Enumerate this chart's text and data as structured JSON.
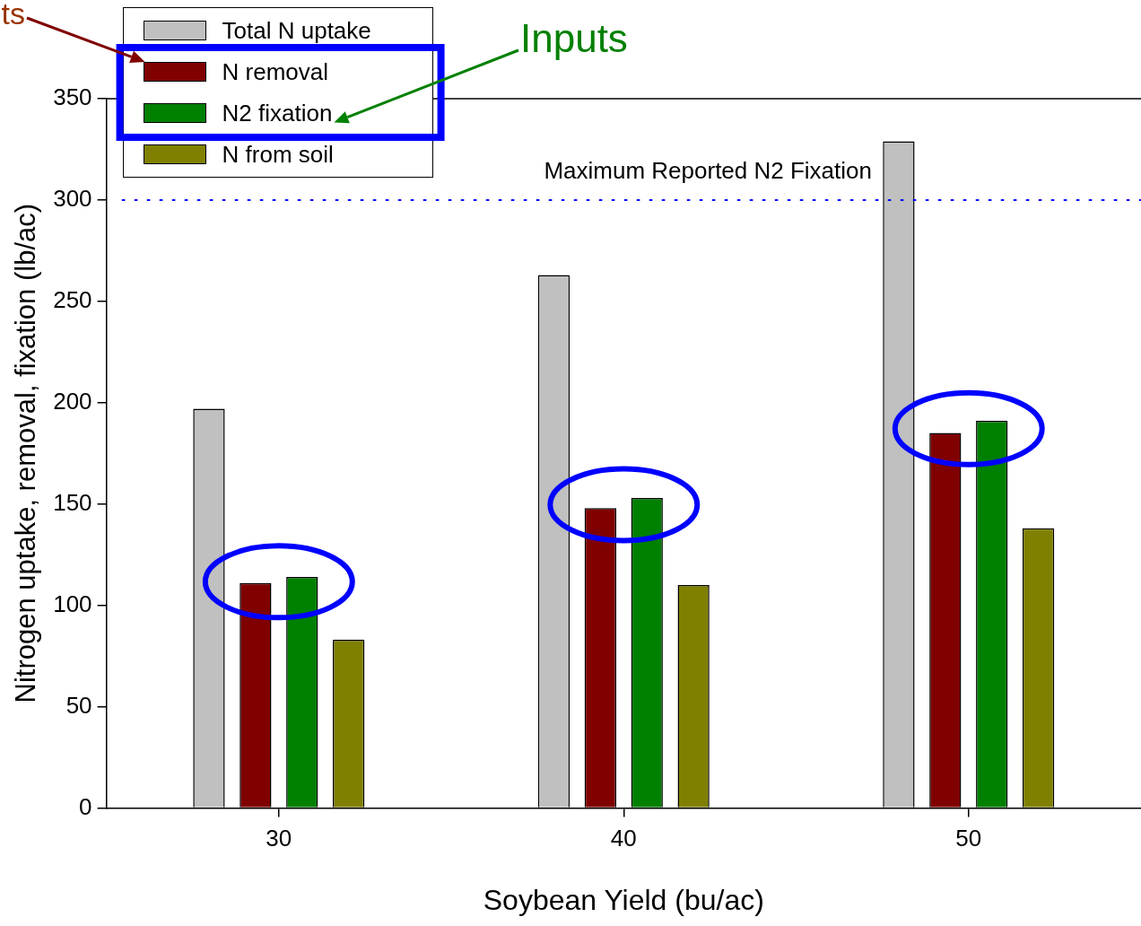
{
  "chart_data": {
    "type": "bar",
    "xlabel": "Soybean Yield (bu/ac)",
    "ylabel": "Nitrogen uptake, removal, fixation (lb/ac)",
    "categories": [
      "30",
      "40",
      "50"
    ],
    "series": [
      {
        "name": "Total N uptake",
        "color": "#c0c0c0",
        "values": [
          197,
          263,
          329
        ]
      },
      {
        "name": "N removal",
        "color": "#800000",
        "values": [
          111,
          148,
          185
        ]
      },
      {
        "name": "N2 fixation",
        "color": "#008000",
        "values": [
          114,
          153,
          191
        ]
      },
      {
        "name": "N from soil",
        "color": "#808000",
        "values": [
          83,
          110,
          138
        ]
      }
    ],
    "ylim": [
      0,
      350
    ],
    "yticks": [
      0,
      50,
      100,
      150,
      200,
      250,
      300,
      350
    ],
    "grid": false,
    "legend": "top left",
    "ref_lines": [
      {
        "axis": "y",
        "value": 300,
        "label": "Maximum Reported N2 Fixation",
        "color": "#0000ff",
        "line_style": "dotted"
      }
    ],
    "annotations": [
      "ts",
      "Inputs"
    ]
  }
}
